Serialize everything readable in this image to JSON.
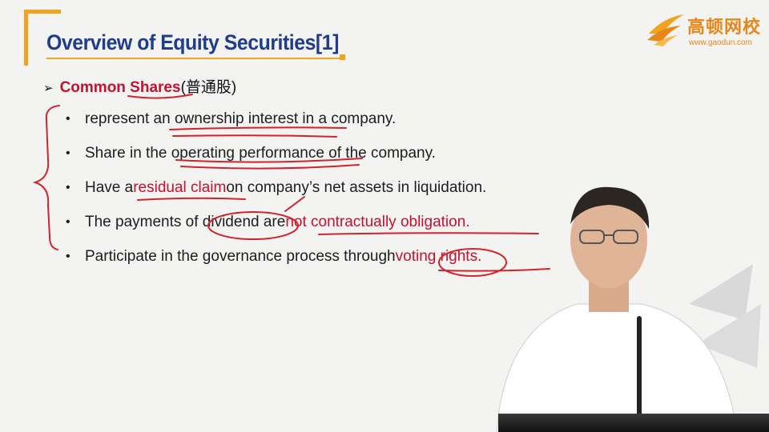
{
  "slide": {
    "title": "Overview of Equity Securities[1]",
    "heading_en": "Common Shares",
    "heading_cn": "(普通股)",
    "bullets": [
      {
        "pre": "represent an ownership interest in a company.",
        "red": "",
        "post": "",
        "red2": ""
      },
      {
        "pre": "Share in the operating performance of the company.",
        "red": "",
        "post": "",
        "red2": ""
      },
      {
        "pre": "Have a ",
        "red": "residual claim",
        "post": " on company’s net assets in liquidation.",
        "red2": ""
      },
      {
        "pre": "The payments of dividend are ",
        "red": "not contractually obligation.",
        "post": "",
        "red2": ""
      },
      {
        "pre": "Participate in the governance process through ",
        "red": "voting rights.",
        "post": "",
        "red2": ""
      }
    ]
  },
  "logo": {
    "name": "高顿网校",
    "url": "www.gaodun.com"
  },
  "colors": {
    "title_blue": "#1f3d8a",
    "accent_orange": "#f0a31e",
    "highlight_red": "#c8102e"
  },
  "icons": {
    "bullet_arrow": "arrow-right-icon",
    "bullet_dot": "bullet-dot-icon"
  }
}
